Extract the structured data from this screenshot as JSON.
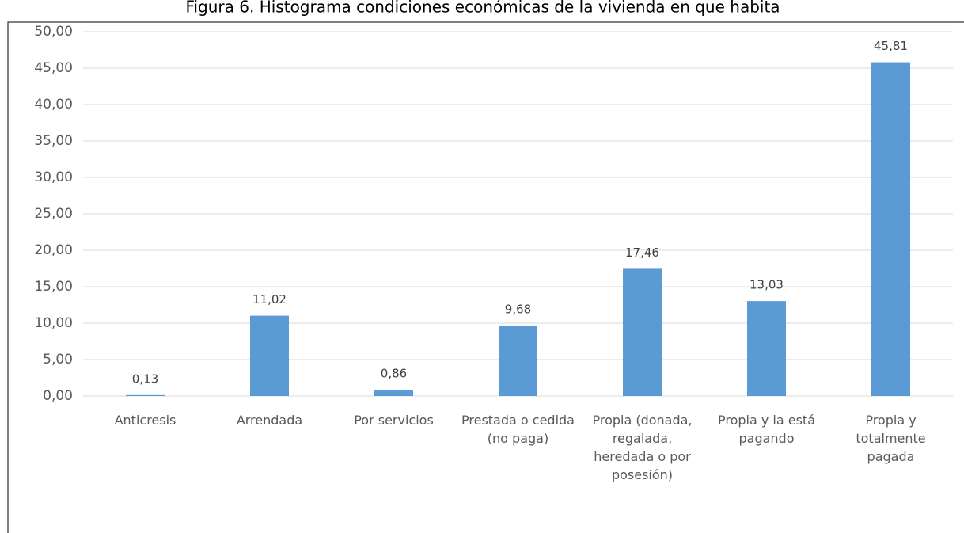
{
  "chart_data": {
    "type": "bar",
    "title": "Figura 6. Histograma condiciones económicas de la vivienda en que habita",
    "categories": [
      "Anticresis",
      "Arrendada",
      "Por servicios",
      "Prestada o cedida (no paga)",
      "Propia (donada, regalada, heredada o por posesión)",
      "Propia y la está pagando",
      "Propia y totalmente pagada"
    ],
    "values": [
      0.13,
      11.02,
      0.86,
      9.68,
      17.46,
      13.03,
      45.81
    ],
    "value_labels": [
      "0,13",
      "11,02",
      "0,86",
      "9,68",
      "17,46",
      "13,03",
      "45,81"
    ],
    "color": "#5b9bd5",
    "ylim": [
      0,
      50
    ],
    "yticks": [
      {
        "value": 0,
        "label": "0,00"
      },
      {
        "value": 5,
        "label": "5,00"
      },
      {
        "value": 10,
        "label": "10,00"
      },
      {
        "value": 15,
        "label": "15,00"
      },
      {
        "value": 20,
        "label": "20,00"
      },
      {
        "value": 25,
        "label": "25,00"
      },
      {
        "value": 30,
        "label": "30,00"
      },
      {
        "value": 35,
        "label": "35,00"
      },
      {
        "value": 40,
        "label": "40,00"
      },
      {
        "value": 45,
        "label": "45,00"
      },
      {
        "value": 50,
        "label": "50,00"
      }
    ],
    "grid": true
  }
}
